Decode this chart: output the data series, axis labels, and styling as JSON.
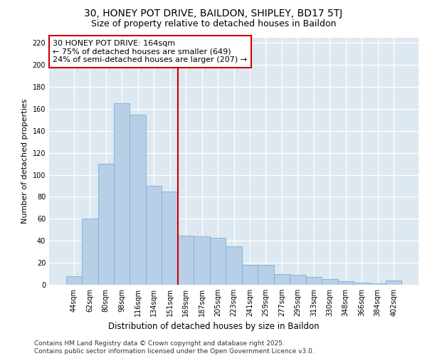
{
  "title1": "30, HONEY POT DRIVE, BAILDON, SHIPLEY, BD17 5TJ",
  "title2": "Size of property relative to detached houses in Baildon",
  "xlabel": "Distribution of detached houses by size in Baildon",
  "ylabel": "Number of detached properties",
  "categories": [
    "44sqm",
    "62sqm",
    "80sqm",
    "98sqm",
    "116sqm",
    "134sqm",
    "151sqm",
    "169sqm",
    "187sqm",
    "205sqm",
    "223sqm",
    "241sqm",
    "259sqm",
    "277sqm",
    "295sqm",
    "313sqm",
    "330sqm",
    "348sqm",
    "366sqm",
    "384sqm",
    "402sqm"
  ],
  "values": [
    8,
    60,
    110,
    165,
    155,
    90,
    85,
    45,
    44,
    43,
    35,
    18,
    18,
    10,
    9,
    7,
    5,
    3,
    2,
    1,
    4
  ],
  "bar_color": "#b8cfe8",
  "bar_edge_color": "#7aafd4",
  "background_color": "#dde8f0",
  "vline_color": "#cc0000",
  "annotation_title": "30 HONEY POT DRIVE: 164sqm",
  "annotation_line1": "← 75% of detached houses are smaller (649)",
  "annotation_line2": "24% of semi-detached houses are larger (207) →",
  "annotation_box_color": "white",
  "annotation_edge_color": "#cc0000",
  "ylim": [
    0,
    225
  ],
  "yticks": [
    0,
    20,
    40,
    60,
    80,
    100,
    120,
    140,
    160,
    180,
    200,
    220
  ],
  "footer": "Contains HM Land Registry data © Crown copyright and database right 2025.\nContains public sector information licensed under the Open Government Licence v3.0.",
  "title1_fontsize": 10,
  "title2_fontsize": 9,
  "xlabel_fontsize": 8.5,
  "ylabel_fontsize": 8,
  "tick_fontsize": 7,
  "annotation_fontsize": 8,
  "footer_fontsize": 6.5
}
